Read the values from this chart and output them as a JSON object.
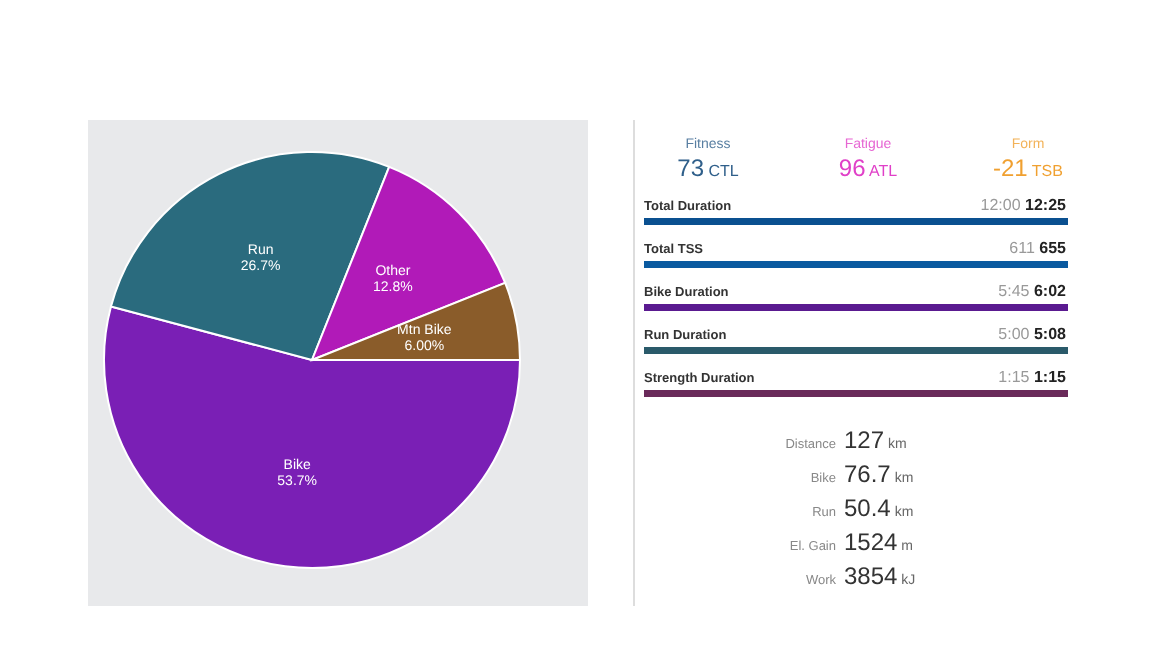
{
  "chart_data": [
    {
      "type": "pie",
      "categories": [
        "Bike",
        "Run",
        "Other",
        "Mtn Bike"
      ],
      "values": [
        53.7,
        26.7,
        12.8,
        6.0
      ],
      "value_labels": [
        "53.7%",
        "26.7%",
        "12.8%",
        "6.00%"
      ],
      "colors": [
        "#7a1fb5",
        "#2a6b7e",
        "#b11ab8",
        "#8a5c2a"
      ]
    },
    {
      "type": "other",
      "annotations": [
        "Fitness",
        "73",
        "CTL",
        "Fatigue",
        "96",
        "ATL",
        "Form",
        "-21",
        "TSB",
        "Total Duration",
        "12:00",
        "12:25",
        "Total TSS",
        "611",
        "655",
        "Bike Duration",
        "5:45",
        "6:02",
        "Run Duration",
        "5:00",
        "5:08",
        "Strength Duration",
        "1:15",
        "1:15",
        "Distance",
        "127",
        "km",
        "Bike",
        "76.7",
        "km",
        "Run",
        "50.4",
        "km",
        "El. Gain",
        "1524",
        "m",
        "Work",
        "3854",
        "kJ"
      ]
    }
  ]
}
